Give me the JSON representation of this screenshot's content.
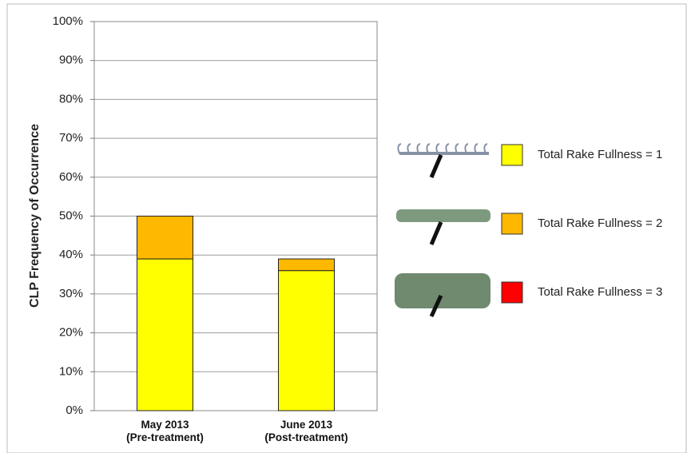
{
  "chart_data": {
    "type": "stacked_bar",
    "y_label": "CLP Frequency of Occurrence",
    "categories": [
      "May 2013\n(Pre-treatment)",
      "June 2013\n(Post-treatment)"
    ],
    "series": [
      {
        "name": "Total Rake Fullness = 1",
        "color": "#ffff00",
        "values": [
          39,
          36
        ]
      },
      {
        "name": "Total Rake Fullness = 2",
        "color": "#ffb800",
        "values": [
          11,
          3
        ]
      },
      {
        "name": "Total Rake Fullness = 3",
        "color": "#ff0000",
        "values": [
          0,
          0
        ]
      }
    ],
    "ylim": [
      0,
      100
    ],
    "yticks": [
      {
        "value": 0,
        "label": "0%"
      },
      {
        "value": 10,
        "label": "10%"
      },
      {
        "value": 20,
        "label": "20%"
      },
      {
        "value": 30,
        "label": "30%"
      },
      {
        "value": 40,
        "label": "40%"
      },
      {
        "value": 50,
        "label": "50%"
      },
      {
        "value": 60,
        "label": "60%"
      },
      {
        "value": 70,
        "label": "70%"
      },
      {
        "value": 80,
        "label": "80%"
      },
      {
        "value": 90,
        "label": "90%"
      },
      {
        "value": 100,
        "label": "100%"
      }
    ],
    "grid": true,
    "legend": "right"
  }
}
